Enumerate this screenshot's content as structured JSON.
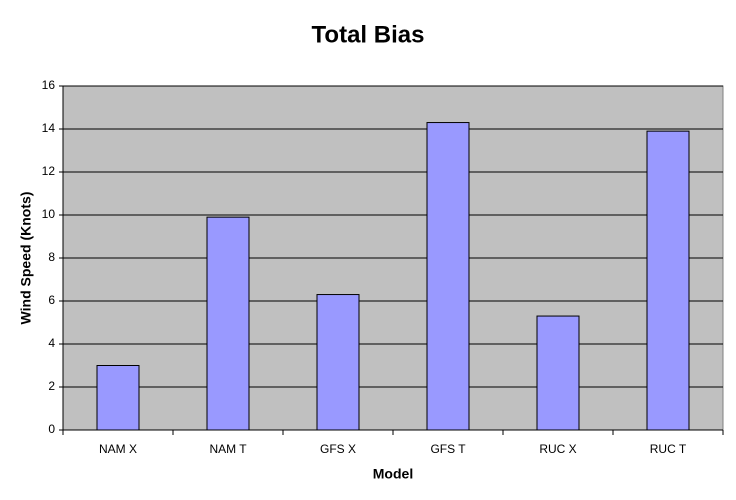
{
  "chart_data": {
    "type": "bar",
    "title": "Total Bias",
    "x_label": "Model",
    "y_label": "Wind Speed (Knots)",
    "categories": [
      "NAM X",
      "NAM T",
      "GFS X",
      "GFS T",
      "RUC X",
      "RUC T"
    ],
    "values": [
      3.0,
      9.9,
      6.3,
      14.3,
      5.3,
      13.9
    ],
    "color": "#9999ff",
    "ylim": [
      0,
      16
    ],
    "yticks": [
      0,
      2,
      4,
      6,
      8,
      10,
      12,
      14,
      16
    ],
    "grid": true
  }
}
